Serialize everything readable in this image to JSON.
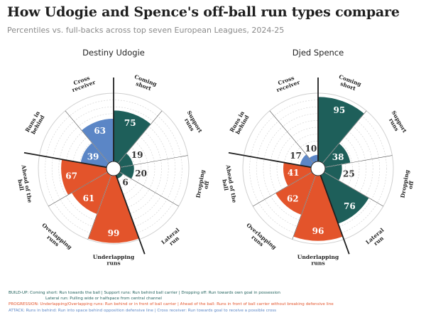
{
  "title": "How Udogie and Spence's off-ball run types compare",
  "subtitle": "Percentiles vs. full-backs across top seven European Leagues, 2024-25",
  "colors": {
    "build_up": "#1e5f5a",
    "progression": "#e3542b",
    "attack": "#5b86c6",
    "grid": "#cfcfcf",
    "divider": "#1f1f1f"
  },
  "chart_data": {
    "type": "polar-bar",
    "scale": [
      0,
      100
    ],
    "categories": [
      {
        "label": "Coming short",
        "group": "build_up"
      },
      {
        "label": "Support runs",
        "group": "build_up"
      },
      {
        "label": "Dropping off",
        "group": "build_up"
      },
      {
        "label": "Lateral run",
        "group": "build_up"
      },
      {
        "label": "Underlapping runs",
        "group": "progression"
      },
      {
        "label": "Overlapping runs",
        "group": "progression"
      },
      {
        "label": "Ahead of the ball",
        "group": "progression"
      },
      {
        "label": "Runs in behind",
        "group": "attack"
      },
      {
        "label": "Cross receiver",
        "group": "attack"
      }
    ],
    "players": [
      {
        "name": "Destiny Udogie",
        "values": [
          75,
          19,
          20,
          6,
          99,
          61,
          67,
          39,
          63
        ]
      },
      {
        "name": "Djed Spence",
        "values": [
          95,
          38,
          25,
          76,
          96,
          62,
          41,
          17,
          10
        ]
      }
    ]
  },
  "legend": {
    "build_up": {
      "tag": "BUILD-UP:",
      "text": " Coming short: Run towards the ball | Support runs: Run behind ball carrier | Dropping off: Run towards own goal in possession",
      "text2": "Lateral run: Pulling wide or halfspace from central channel"
    },
    "progression": {
      "tag": "PROGRESSION:",
      "text": " Underlapping/Overlapping runs: Run behind or in front of ball carrier | Ahead of the ball: Runs in front of ball carrier without breaking defensive line"
    },
    "attack": {
      "tag": "ATTACK:",
      "text": " Runs in behind: Run into space behind opposition defensive line | Cross receiver: Run towards goal to receive a possible cross"
    }
  }
}
